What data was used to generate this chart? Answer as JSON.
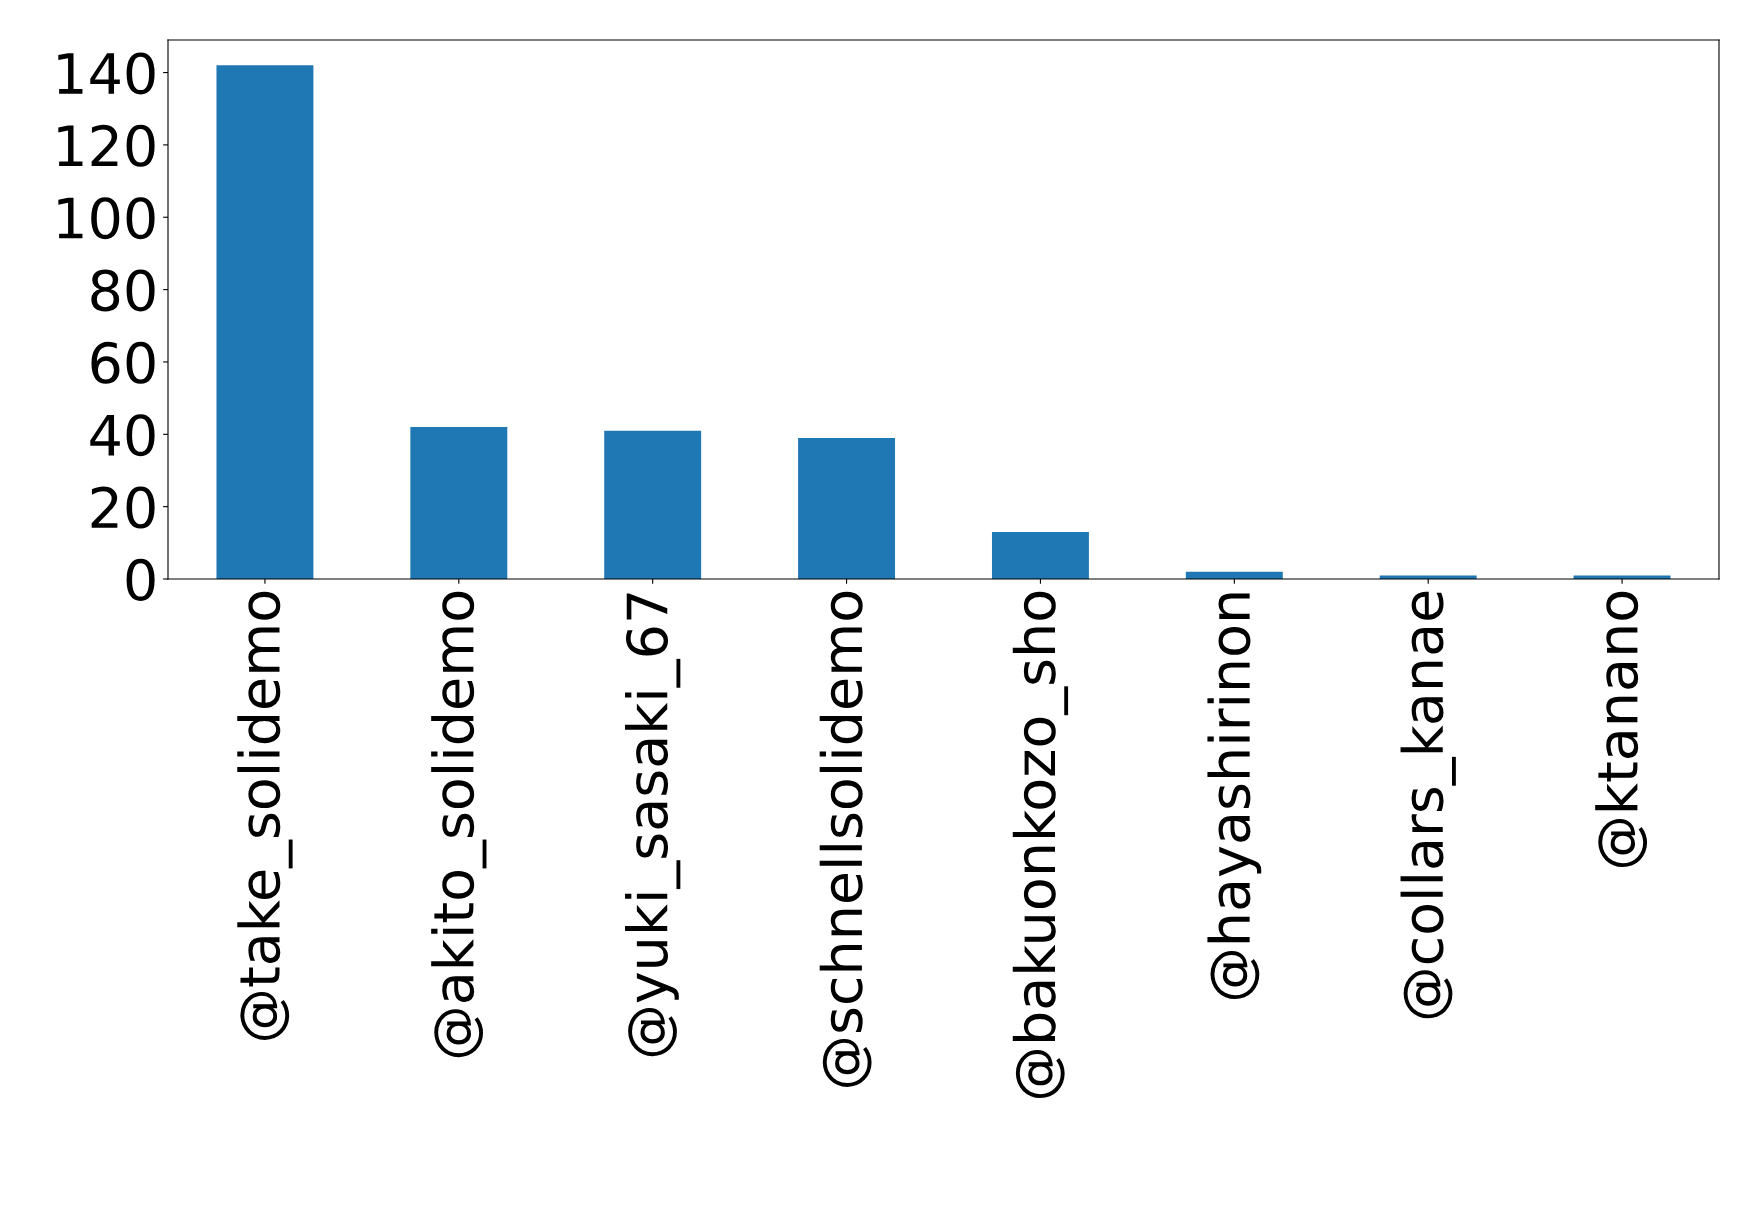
{
  "chart_data": {
    "type": "bar",
    "categories": [
      "@take_solidemo",
      "@akito_solidemo",
      "@yuki_sasaki_67",
      "@schnellsolidemo",
      "@bakuonkozo_sho",
      "@hayashirinon",
      "@collars_kanae",
      "@ktanano"
    ],
    "values": [
      142,
      42,
      41,
      39,
      13,
      2,
      1,
      1
    ],
    "color": "#1f77b4",
    "ylim": [
      0,
      149
    ],
    "yticks": [
      0,
      20,
      40,
      60,
      80,
      100,
      120,
      140
    ],
    "grid": false,
    "legend": false
  }
}
